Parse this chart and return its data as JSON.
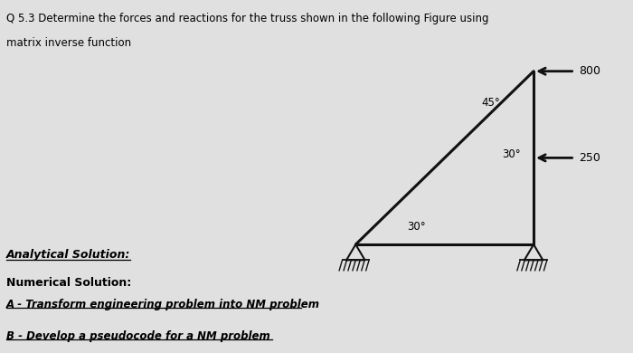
{
  "title_line1": "Q 5.3 Determine the forces and reactions for the truss shown in the following Figure using",
  "title_line2": "matrix inverse function",
  "analytical_label": "Analytical Solution:",
  "numerical_label": "Numerical Solution:",
  "A_label": "A - Transform engineering problem into NM problem",
  "B_label": "B - Develop a pseudocode for a NM problem",
  "bg_color": "#c8dff0",
  "page_color": "#e0e0e0",
  "nodes": {
    "A": [
      0.0,
      0.0
    ],
    "B": [
      1.73,
      0.0
    ],
    "C": [
      1.73,
      1.0
    ]
  },
  "members": [
    [
      "A",
      "B"
    ],
    [
      "A",
      "C"
    ],
    [
      "B",
      "C"
    ]
  ],
  "force_800_label": "800",
  "force_250_label": "250",
  "angle_45_label": "45°",
  "angle_30_upper_label": "30°",
  "angle_30_lower_label": "30°",
  "line_color": "#111111",
  "arrow_color": "#111111",
  "diagram_xlim": [
    -0.35,
    2.45
  ],
  "diagram_ylim": [
    -0.28,
    1.35
  ]
}
